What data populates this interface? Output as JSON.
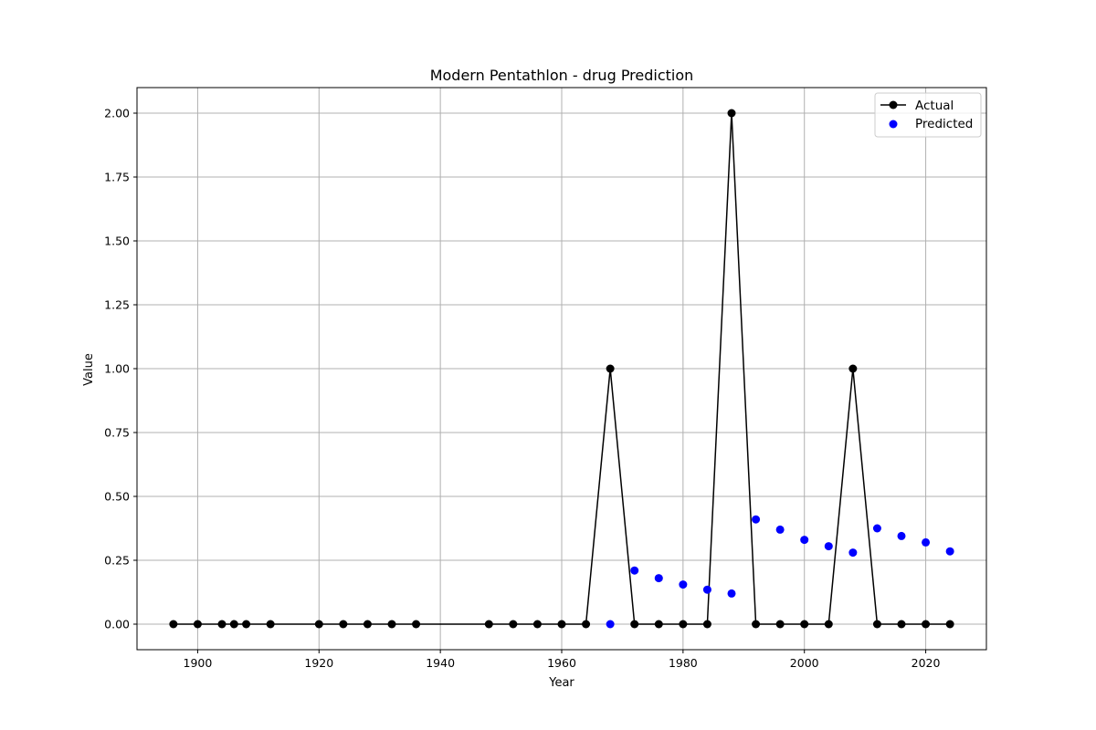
{
  "chart_data": {
    "type": "line",
    "title": "Modern Pentathlon - drug Prediction",
    "xlabel": "Year",
    "ylabel": "Value",
    "xlim": [
      1890,
      2030
    ],
    "ylim": [
      -0.1,
      2.1
    ],
    "xticks": [
      1900,
      1920,
      1940,
      1960,
      1980,
      2000,
      2020
    ],
    "yticks": [
      0.0,
      0.25,
      0.5,
      0.75,
      1.0,
      1.25,
      1.5,
      1.75,
      2.0
    ],
    "ytick_labels": [
      "0.00",
      "0.25",
      "0.50",
      "0.75",
      "1.00",
      "1.25",
      "1.50",
      "1.75",
      "2.00"
    ],
    "grid": true,
    "legend_position": "top-right",
    "series": [
      {
        "name": "Actual",
        "kind": "line-markers",
        "color": "#000000",
        "x": [
          1896,
          1900,
          1904,
          1906,
          1908,
          1912,
          1920,
          1924,
          1928,
          1932,
          1936,
          1948,
          1952,
          1956,
          1960,
          1964,
          1968,
          1972,
          1976,
          1980,
          1984,
          1988,
          1992,
          1996,
          2000,
          2004,
          2008,
          2012,
          2016,
          2020,
          2024
        ],
        "y": [
          0,
          0,
          0,
          0,
          0,
          0,
          0,
          0,
          0,
          0,
          0,
          0,
          0,
          0,
          0,
          0,
          1,
          0,
          0,
          0,
          0,
          2,
          0,
          0,
          0,
          0,
          1,
          0,
          0,
          0,
          0
        ]
      },
      {
        "name": "Predicted",
        "kind": "scatter",
        "color": "#0000ff",
        "x": [
          1968,
          1972,
          1976,
          1980,
          1984,
          1988,
          1992,
          1996,
          2000,
          2004,
          2008,
          2012,
          2016,
          2020,
          2024
        ],
        "y": [
          0.0,
          0.21,
          0.18,
          0.155,
          0.135,
          0.12,
          0.41,
          0.37,
          0.33,
          0.305,
          0.28,
          0.375,
          0.345,
          0.32,
          0.285
        ]
      }
    ]
  }
}
